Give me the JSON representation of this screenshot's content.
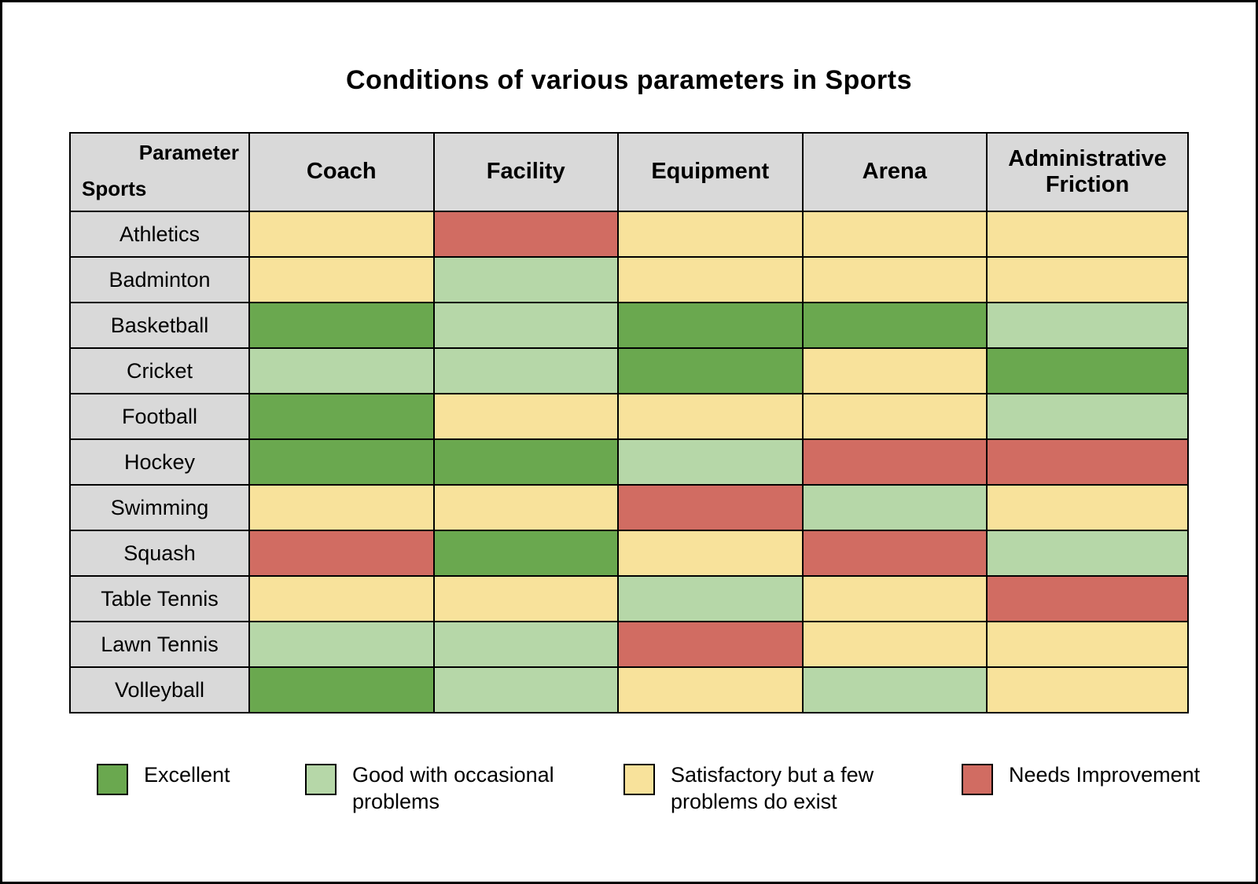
{
  "title": "Conditions of various parameters in Sports",
  "corner": {
    "parameter_label": "Parameter",
    "sports_label": "Sports"
  },
  "colors": {
    "excellent": "#6aa84f",
    "good": "#b6d7a8",
    "satisfactory": "#f8e29b",
    "needs_improvement": "#d16c62",
    "header_bg": "#d9d9d9",
    "corner_bg": "#ededed"
  },
  "legend": [
    {
      "key": "excellent",
      "label": "Excellent"
    },
    {
      "key": "good",
      "label": "Good with occasional problems"
    },
    {
      "key": "satisfactory",
      "label": "Satisfactory but a few problems do exist"
    },
    {
      "key": "needs_improvement",
      "label": "Needs Improvement"
    }
  ],
  "chart_data": {
    "type": "heatmap",
    "title": "Conditions of various parameters in Sports",
    "columns": [
      "Coach",
      "Facility",
      "Equipment",
      "Arena",
      "Administrative Friction"
    ],
    "rows": [
      "Athletics",
      "Badminton",
      "Basketball",
      "Cricket",
      "Football",
      "Hockey",
      "Swimming",
      "Squash",
      "Table Tennis",
      "Lawn Tennis",
      "Volleyball"
    ],
    "value_labels": {
      "excellent": "Excellent",
      "good": "Good with occasional problems",
      "satisfactory": "Satisfactory but a few problems do exist",
      "needs_improvement": "Needs Improvement"
    },
    "values": [
      [
        "satisfactory",
        "needs_improvement",
        "satisfactory",
        "satisfactory",
        "satisfactory"
      ],
      [
        "satisfactory",
        "good",
        "satisfactory",
        "satisfactory",
        "satisfactory"
      ],
      [
        "excellent",
        "good",
        "excellent",
        "excellent",
        "good"
      ],
      [
        "good",
        "good",
        "excellent",
        "satisfactory",
        "excellent"
      ],
      [
        "excellent",
        "satisfactory",
        "satisfactory",
        "satisfactory",
        "good"
      ],
      [
        "excellent",
        "excellent",
        "good",
        "needs_improvement",
        "needs_improvement"
      ],
      [
        "satisfactory",
        "satisfactory",
        "needs_improvement",
        "good",
        "satisfactory"
      ],
      [
        "needs_improvement",
        "excellent",
        "satisfactory",
        "needs_improvement",
        "good"
      ],
      [
        "satisfactory",
        "satisfactory",
        "good",
        "satisfactory",
        "needs_improvement"
      ],
      [
        "good",
        "good",
        "needs_improvement",
        "satisfactory",
        "satisfactory"
      ],
      [
        "excellent",
        "good",
        "satisfactory",
        "good",
        "satisfactory"
      ]
    ]
  }
}
